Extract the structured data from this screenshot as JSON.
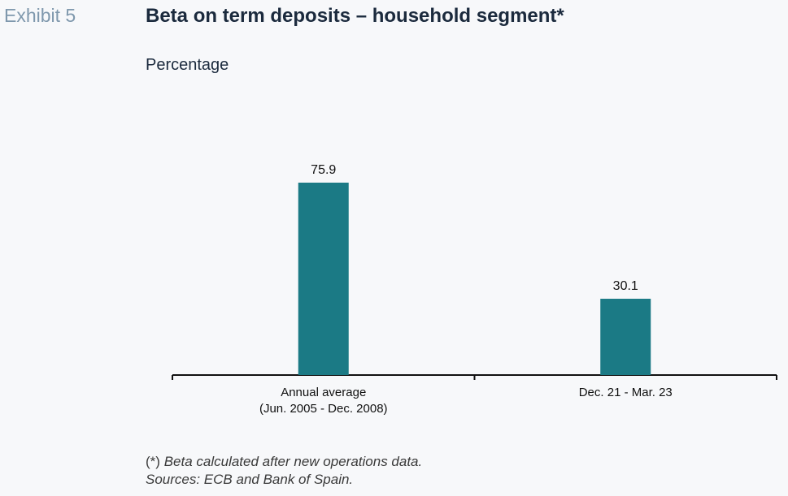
{
  "exhibit_label": "Exhibit 5",
  "title": "Beta on term deposits – household segment*",
  "subtitle": "Percentage",
  "chart_data": {
    "type": "bar",
    "title": "Beta on term deposits – household segment*",
    "subtitle": "Percentage",
    "categories": [
      [
        "Annual average",
        "(Jun. 2005 - Dec. 2008)"
      ],
      [
        "Dec. 21 - Mar. 23"
      ]
    ],
    "values": [
      75.9,
      30.1
    ],
    "data_labels": [
      "75.9",
      "30.1"
    ],
    "ylim": [
      0,
      100
    ],
    "bar_color": "#1b7a85",
    "grid": false,
    "legend": "none"
  },
  "notes": {
    "marker": "(*)",
    "line1": "Beta calculated after new operations data.",
    "line2": "Sources: ECB and Bank of Spain."
  }
}
